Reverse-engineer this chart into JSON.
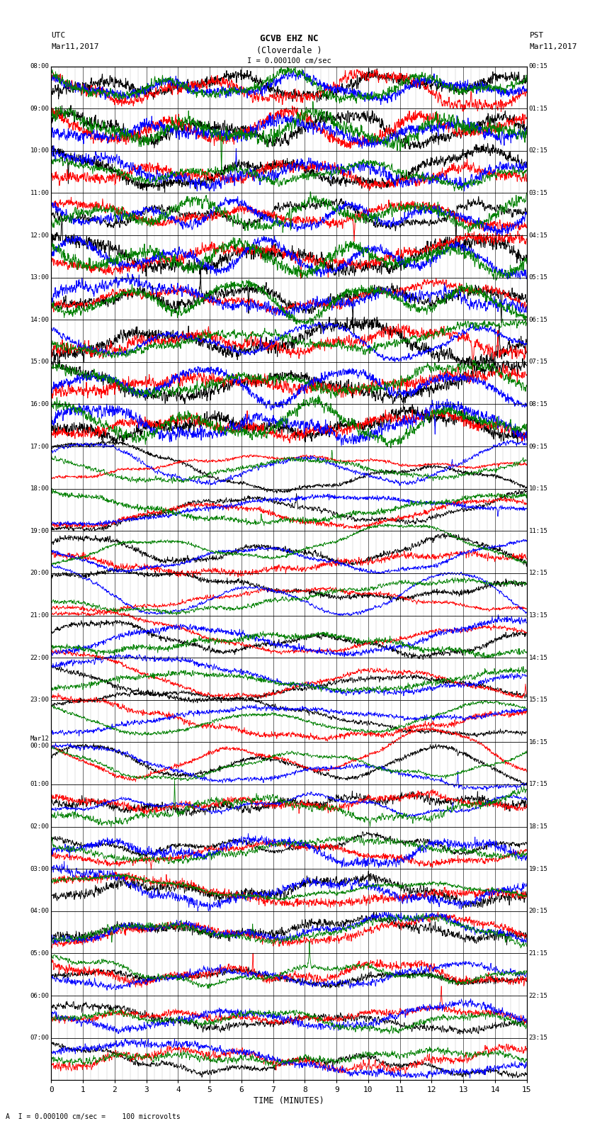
{
  "title_line1": "GCVB EHZ NC",
  "title_line2": "(Cloverdale )",
  "scale_label": "I = 0.000100 cm/sec",
  "left_label_top": "UTC",
  "left_label_date": "Mar11,2017",
  "right_label_top": "PST",
  "right_label_date": "Mar11,2017",
  "utc_times": [
    "08:00",
    "09:00",
    "10:00",
    "11:00",
    "12:00",
    "13:00",
    "14:00",
    "15:00",
    "16:00",
    "17:00",
    "18:00",
    "19:00",
    "20:00",
    "21:00",
    "22:00",
    "23:00",
    "Mar12\n00:00",
    "01:00",
    "02:00",
    "03:00",
    "04:00",
    "05:00",
    "06:00",
    "07:00"
  ],
  "pst_times": [
    "00:15",
    "01:15",
    "02:15",
    "03:15",
    "04:15",
    "05:15",
    "06:15",
    "07:15",
    "08:15",
    "09:15",
    "10:15",
    "11:15",
    "12:15",
    "13:15",
    "14:15",
    "15:15",
    "16:15",
    "17:15",
    "18:15",
    "19:15",
    "20:15",
    "21:15",
    "22:15",
    "23:15"
  ],
  "xlabel": "TIME (MINUTES)",
  "footer": "A  I = 0.000100 cm/sec =    100 microvolts",
  "xmin": 0,
  "xmax": 15,
  "n_rows": 24,
  "colors": [
    "black",
    "red",
    "blue",
    "green"
  ],
  "bg_color": "#ffffff",
  "grid_minor_color": "#aaaaaa",
  "grid_major_color": "#555555",
  "row_sep_color": "#000000"
}
